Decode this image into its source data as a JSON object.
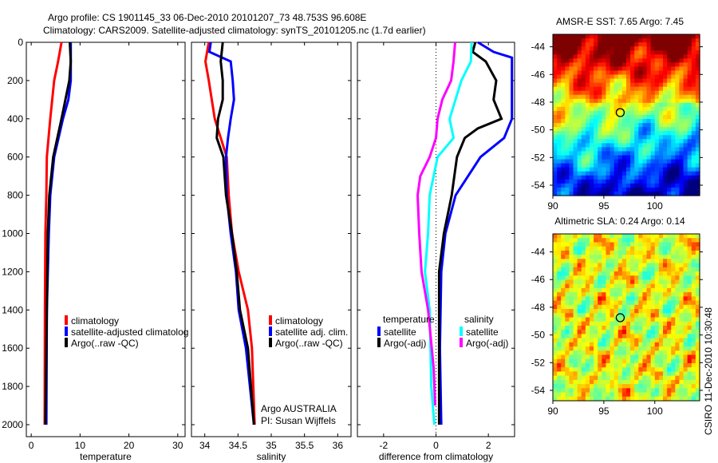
{
  "title_line1": "Argo profile: CS 1901145_33 06-Dec-2010 20101207_73 48.753S 96.608E",
  "title_line2": "Climatology: CARS2009. Satellite-adjusted climatology: synTS_20101205.nc (1.7d earlier)",
  "colors": {
    "climatology": "#ff0000",
    "satellite": "#0000ff",
    "argo": "#000000",
    "sal_satellite": "#00ffff",
    "sal_argo": "#ff00ff"
  },
  "chart_data": [
    {
      "type": "line",
      "name": "temperature-panel",
      "xlabel": "temperature",
      "ylabel": "",
      "xlim": [
        -1,
        31.5
      ],
      "ylim": [
        2000,
        0
      ],
      "xticks": [
        "0",
        "10",
        "20",
        "30"
      ],
      "xtick_values": [
        0,
        10,
        20,
        30
      ],
      "yticks": [
        "0",
        "200",
        "400",
        "600",
        "800",
        "1000",
        "1200",
        "1400",
        "1600",
        "1800",
        "2000"
      ],
      "legend": [
        "climatology",
        "satellite-adjusted climatolog",
        "Argo(..raw -QC)"
      ],
      "series": [
        {
          "name": "climatology",
          "color": "#ff0000",
          "depth": [
            0,
            100,
            200,
            400,
            600,
            800,
            1000,
            1400,
            2000
          ],
          "values": [
            6.2,
            5.5,
            4.7,
            3.9,
            3.2,
            3.1,
            2.9,
            2.8,
            2.75
          ]
        },
        {
          "name": "satellite-adjusted climatology",
          "color": "#0000ff",
          "depth": [
            0,
            200,
            300,
            400,
            600,
            800,
            1000,
            1400,
            2000
          ],
          "values": [
            8.1,
            8.1,
            7.6,
            6.5,
            4.7,
            3.9,
            3.6,
            3.2,
            3.1
          ]
        },
        {
          "name": "Argo",
          "color": "#000000",
          "depth": [
            0,
            100,
            200,
            400,
            600,
            800,
            1000,
            1400,
            2000
          ],
          "values": [
            7.9,
            8.1,
            7.8,
            6.2,
            4.5,
            3.7,
            3.4,
            3.2,
            2.9
          ]
        }
      ]
    },
    {
      "type": "line",
      "name": "salinity-panel",
      "xlabel": "salinity",
      "xlim": [
        33.8,
        36.2
      ],
      "ylim": [
        2000,
        0
      ],
      "xticks": [
        "34",
        "34.5",
        "35",
        "35.5",
        "36"
      ],
      "xtick_values": [
        34,
        34.5,
        35,
        35.5,
        36
      ],
      "legend": [
        "climatology",
        "satellite adj. clim.",
        "Argo(..raw -QC)"
      ],
      "annotation": [
        "Argo AUSTRALIA",
        "PI: Susan Wijffels"
      ],
      "series": [
        {
          "name": "climatology",
          "color": "#ff0000",
          "depth": [
            0,
            100,
            200,
            400,
            600,
            800,
            1000,
            1200,
            1400,
            1600,
            2000
          ],
          "values": [
            34.06,
            34.01,
            34.06,
            34.15,
            34.33,
            34.36,
            34.41,
            34.51,
            34.65,
            34.71,
            34.75
          ]
        },
        {
          "name": "satellite adj. clim.",
          "color": "#0000ff",
          "depth": [
            0,
            50,
            100,
            200,
            300,
            400,
            500,
            600,
            800,
            1000,
            1200,
            1400,
            1600,
            2000
          ],
          "values": [
            34.09,
            34.07,
            34.39,
            34.42,
            34.44,
            34.39,
            34.35,
            34.32,
            34.33,
            34.39,
            34.47,
            34.51,
            34.62,
            34.74
          ]
        },
        {
          "name": "Argo",
          "color": "#000000",
          "depth": [
            0,
            100,
            200,
            300,
            400,
            500,
            600,
            800,
            1000,
            1200,
            1400,
            1600,
            2000
          ],
          "values": [
            34.27,
            34.24,
            34.27,
            34.27,
            34.2,
            34.18,
            34.28,
            34.32,
            34.41,
            34.48,
            34.53,
            34.65,
            34.74
          ]
        }
      ]
    },
    {
      "type": "line",
      "name": "difference-panel",
      "xlabel": "difference from climatology",
      "xlim": [
        -3,
        3
      ],
      "ylim": [
        2000,
        0
      ],
      "xticks": [
        "-2",
        "0",
        "2"
      ],
      "xtick_values": [
        -2,
        0,
        2
      ],
      "legend_headers": [
        "temperature",
        "salinity"
      ],
      "legend": [
        "satellite",
        "Argo(-adj)",
        "satellite",
        "Argo(-adj)"
      ],
      "series": [
        {
          "name": "temperature satellite",
          "color": "#0000ff",
          "depth": [
            0,
            50,
            80,
            400,
            500,
            600,
            800,
            1000,
            1200,
            1600,
            2000
          ],
          "values": [
            1.6,
            2.2,
            2.9,
            2.9,
            2.6,
            1.7,
            0.75,
            0.36,
            0.2,
            0.15,
            0.2
          ]
        },
        {
          "name": "temperature Argo(-adj)",
          "color": "#000000",
          "depth": [
            0,
            50,
            100,
            200,
            300,
            400,
            450,
            500,
            600,
            800,
            1000,
            1200,
            1600,
            2000
          ],
          "values": [
            1.5,
            1.4,
            1.9,
            2.3,
            2.2,
            2.5,
            1.6,
            1.1,
            0.8,
            0.6,
            0.3,
            0.12,
            0.12,
            0.12
          ]
        },
        {
          "name": "salinity satellite",
          "color": "#00ffff",
          "depth": [
            0,
            100,
            200,
            400,
            500,
            600,
            800,
            1000,
            1200,
            1400,
            1800,
            2000
          ],
          "values": [
            1.36,
            1.33,
            0.97,
            0.52,
            0.67,
            0.06,
            -0.24,
            -0.3,
            -0.42,
            -0.24,
            -0.18,
            -0.06
          ]
        },
        {
          "name": "salinity Argo(-adj)",
          "color": "#ff00ff",
          "depth": [
            0,
            100,
            200,
            300,
            400,
            500,
            600,
            700,
            800,
            1000,
            1200,
            1400,
            1700,
            1900
          ],
          "values": [
            0.73,
            0.67,
            0.58,
            0.24,
            0.06,
            0,
            -0.24,
            -0.6,
            -0.7,
            -0.64,
            -0.55,
            -0.3,
            -0.09,
            -0.03
          ]
        }
      ]
    },
    {
      "type": "heatmap",
      "name": "sst-map",
      "title": "AMSR-E SST: 7.65 Argo: 7.45",
      "xlim": [
        90,
        104.4
      ],
      "ylim": [
        -54.75,
        -43.1
      ],
      "xticks": [
        "90",
        "95",
        "100"
      ],
      "xtick_values": [
        90,
        95,
        100
      ],
      "yticks": [
        "-44",
        "-46",
        "-48",
        "-50",
        "-52",
        "-54"
      ],
      "ytick_values": [
        -44,
        -46,
        -48,
        -50,
        -52,
        -54
      ],
      "marker": {
        "lon": 96.608,
        "lat": -48.753
      }
    },
    {
      "type": "heatmap",
      "name": "sla-map",
      "title": "Altimetric SLA: 0.24 Argo: 0.14",
      "xlim": [
        90,
        104.4
      ],
      "ylim": [
        -54.75,
        -42.7
      ],
      "xticks": [
        "90",
        "95",
        "100"
      ],
      "xtick_values": [
        90,
        95,
        100
      ],
      "yticks": [
        "-44",
        "-46",
        "-48",
        "-50",
        "-52",
        "-54"
      ],
      "ytick_values": [
        -44,
        -46,
        -48,
        -50,
        -52,
        -54
      ],
      "marker": {
        "lon": 96.608,
        "lat": -48.753
      }
    }
  ],
  "footer": "CSIRO 11-Dec-2010 10:30:48"
}
